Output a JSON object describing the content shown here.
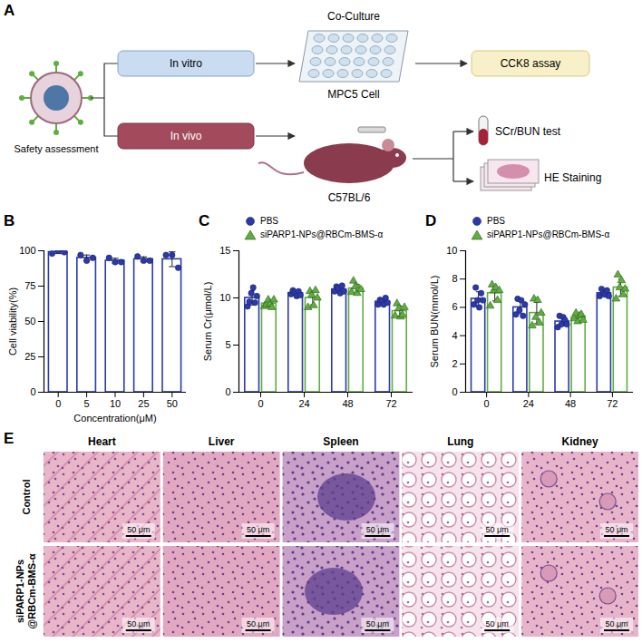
{
  "diagram": {
    "panel": "A",
    "source": "Safety assessment",
    "branches": [
      {
        "label": "In vitro",
        "model_title": "Co-Culture",
        "model": "MPC5 Cell",
        "outputs": [
          "CCK8 assay"
        ]
      },
      {
        "label": "In vivo",
        "model": "C57BL/6",
        "outputs": [
          "SCr/BUN test",
          "HE Staining"
        ]
      }
    ]
  },
  "chart_data": [
    {
      "panel": "B",
      "type": "bar",
      "x_label": "Concentration(μM)",
      "y_label": "Cell viability(%)",
      "categories": [
        "0",
        "5",
        "10",
        "25",
        "50"
      ],
      "values": [
        99,
        95,
        93,
        94,
        94
      ],
      "errors": [
        1,
        2,
        1.7,
        1.7,
        5.2
      ],
      "points": [
        [
          98,
          100,
          99
        ],
        [
          97,
          93,
          95
        ],
        [
          95,
          92,
          92
        ],
        [
          96,
          93,
          93
        ],
        [
          97,
          97,
          88
        ]
      ],
      "color": "#2b3aa8",
      "marker": "circle",
      "ylim": [
        0,
        100
      ],
      "yticks": [
        0,
        25,
        50,
        75,
        100
      ],
      "grid": false
    },
    {
      "panel": "C",
      "type": "bar",
      "y_label": "Serum Cr(μmol/L)",
      "categories": [
        "0",
        "24",
        "48",
        "72"
      ],
      "series": [
        {
          "name": "PBS",
          "color": "#2b3aa8",
          "marker": "circle",
          "values": [
            10.0,
            10.5,
            10.9,
            9.6
          ],
          "errors": [
            0.75,
            0.22,
            0.32,
            0.28
          ],
          "points": [
            [
              9.1,
              9.6,
              10.5,
              11.1,
              9.5,
              10.2
            ],
            [
              10.4,
              10.8,
              10.6,
              10.2,
              10.7,
              10.3
            ],
            [
              10.7,
              11.2,
              11.0,
              10.5,
              11.3,
              10.7
            ],
            [
              9.3,
              9.8,
              9.7,
              9.3,
              10.0,
              9.5
            ]
          ]
        },
        {
          "name": "siPARP1-NPs@RBCm-BMS-α",
          "color": "#5fae3f",
          "marker": "triangle",
          "values": [
            9.4,
            10.0,
            11.0,
            8.6
          ],
          "errors": [
            0.33,
            0.73,
            0.46,
            0.52
          ],
          "points": [
            [
              9.1,
              9.3,
              9.8,
              9.4,
              9.0,
              9.8
            ],
            [
              9.0,
              10.7,
              10.3,
              9.2,
              10.8,
              10.0
            ],
            [
              10.6,
              11.8,
              11.2,
              10.5,
              11.0,
              10.9
            ],
            [
              8.1,
              9.4,
              8.9,
              8.0,
              8.2,
              9.0
            ]
          ]
        }
      ],
      "ylim": [
        0,
        15
      ],
      "yticks": [
        0,
        5,
        10,
        15
      ],
      "legend": "top-left",
      "grid": false
    },
    {
      "panel": "D",
      "type": "bar",
      "y_label": "Serum BUN(mmol/L)",
      "categories": [
        "0",
        "24",
        "48",
        "72"
      ],
      "series": [
        {
          "name": "PBS",
          "color": "#2b3aa8",
          "marker": "circle",
          "values": [
            6.6,
            6.0,
            5.0,
            7.0
          ],
          "errors": [
            0.5,
            0.45,
            0.3,
            0.2
          ],
          "points": [
            [
              6.2,
              7.4,
              6.5,
              6.0,
              7.0,
              6.5
            ],
            [
              5.5,
              6.6,
              5.8,
              6.5,
              5.4,
              6.2
            ],
            [
              4.6,
              5.4,
              4.8,
              5.3,
              5.1,
              4.8
            ],
            [
              6.8,
              7.3,
              7.0,
              6.9,
              7.2,
              6.8
            ]
          ]
        },
        {
          "name": "siPARP1-NPs@RBCm-BMS-α",
          "color": "#5fae3f",
          "marker": "triangle",
          "values": [
            7.0,
            5.6,
            5.3,
            7.4
          ],
          "errors": [
            0.55,
            0.75,
            0.22,
            0.6
          ],
          "points": [
            [
              6.1,
              7.6,
              7.2,
              7.4,
              6.5,
              7.2
            ],
            [
              4.7,
              6.6,
              5.3,
              6.5,
              4.9,
              5.6
            ],
            [
              5.2,
              5.6,
              5.0,
              5.4,
              5.5,
              5.1
            ],
            [
              6.6,
              8.3,
              7.4,
              7.9,
              6.9,
              7.3
            ]
          ]
        }
      ],
      "ylim": [
        0,
        10
      ],
      "yticks": [
        0,
        2,
        4,
        6,
        8,
        10
      ],
      "legend": "top-left",
      "grid": false
    }
  ],
  "image_grid": {
    "panel": "E",
    "columns": [
      "Heart",
      "Liver",
      "Spleen",
      "Lung",
      "Kidney"
    ],
    "rows": [
      "Control",
      "siPARP1-NPs@RBCm-BMS-α"
    ],
    "scale_bar": "50 μm"
  }
}
